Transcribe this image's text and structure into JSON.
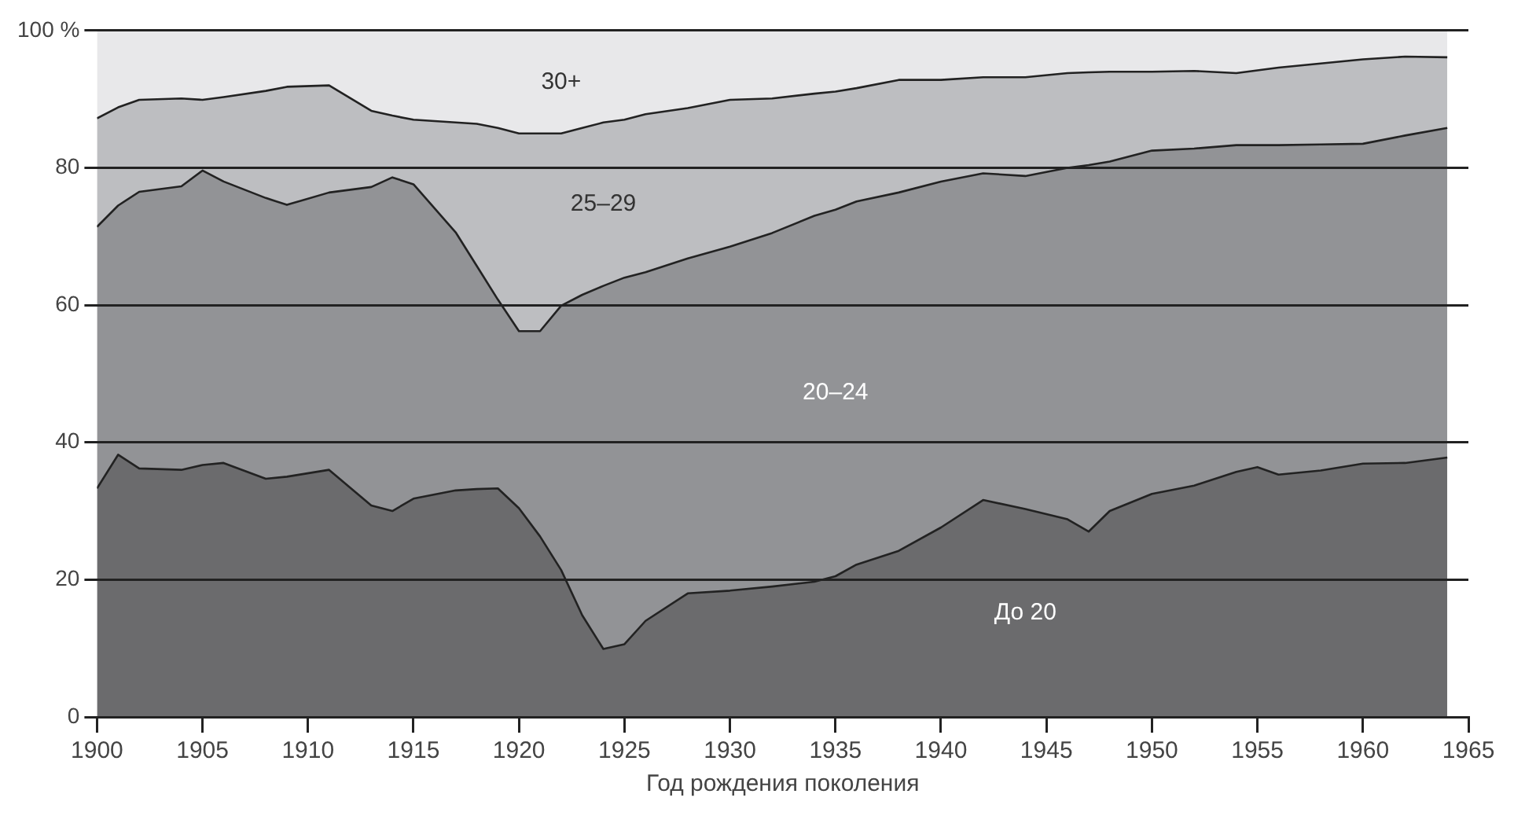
{
  "chart_data": {
    "type": "area",
    "stacked": true,
    "xlabel": "Год рождения поколения",
    "x": [
      1900,
      1901,
      1902,
      1904,
      1905,
      1906,
      1908,
      1909,
      1911,
      1913,
      1914,
      1915,
      1917,
      1918,
      1919,
      1920,
      1921,
      1922,
      1923,
      1924,
      1925,
      1926,
      1928,
      1930,
      1932,
      1934,
      1935,
      1936,
      1938,
      1940,
      1942,
      1944,
      1946,
      1947,
      1948,
      1950,
      1952,
      1954,
      1955,
      1956,
      1958,
      1960,
      1962,
      1964
    ],
    "series": [
      {
        "name": "До 20",
        "color": "#6b6b6d",
        "values": [
          33.3,
          38.2,
          36.2,
          36.0,
          36.7,
          37.0,
          34.7,
          35.0,
          36.0,
          30.8,
          30.0,
          31.8,
          33.0,
          33.2,
          33.3,
          30.4,
          26.3,
          21.4,
          14.8,
          9.9,
          10.6,
          14.0,
          18.0,
          18.4,
          19.0,
          19.7,
          20.5,
          22.2,
          24.2,
          27.6,
          31.6,
          30.3,
          28.8,
          27.0,
          30.0,
          32.5,
          33.7,
          35.7,
          36.4,
          35.3,
          35.9,
          36.9,
          37.0,
          37.8
        ]
      },
      {
        "name": "20–24",
        "color": "#929396",
        "values": [
          38.1,
          36.3,
          40.3,
          41.3,
          42.9,
          41.0,
          40.9,
          39.6,
          40.4,
          46.4,
          48.6,
          45.8,
          37.6,
          32.5,
          27.5,
          25.8,
          29.9,
          38.5,
          46.7,
          52.9,
          53.4,
          50.8,
          48.8,
          50.1,
          51.5,
          53.3,
          53.4,
          52.9,
          52.2,
          50.4,
          47.6,
          48.5,
          51.2,
          53.4,
          50.9,
          50.0,
          49.1,
          47.6,
          46.9,
          48.0,
          47.5,
          46.6,
          47.7,
          48.0
        ]
      },
      {
        "name": "25–29",
        "color": "#bdbec1",
        "values": [
          15.8,
          14.3,
          13.4,
          12.8,
          10.3,
          12.3,
          15.6,
          17.2,
          15.6,
          11.1,
          9.0,
          9.4,
          16.0,
          20.7,
          25.0,
          28.8,
          28.8,
          25.1,
          24.3,
          23.8,
          23.0,
          23.0,
          21.9,
          21.4,
          19.6,
          17.8,
          17.2,
          16.5,
          16.4,
          14.8,
          14.0,
          14.4,
          13.8,
          13.5,
          13.1,
          11.5,
          11.3,
          10.5,
          10.9,
          11.3,
          11.8,
          12.3,
          11.5,
          10.3
        ]
      },
      {
        "name": "30+",
        "color": "#e8e8ea",
        "values": [
          12.8,
          11.2,
          10.1,
          9.9,
          10.1,
          9.7,
          8.8,
          8.2,
          8.0,
          11.7,
          12.4,
          13.0,
          13.4,
          13.6,
          14.2,
          15.0,
          15.0,
          15.0,
          14.2,
          13.4,
          13.0,
          12.2,
          11.3,
          10.1,
          9.9,
          9.2,
          8.9,
          8.4,
          7.2,
          7.2,
          6.8,
          6.8,
          6.2,
          6.1,
          6.0,
          6.0,
          5.9,
          6.2,
          5.8,
          5.4,
          4.8,
          4.2,
          3.8,
          3.9
        ]
      }
    ],
    "xlim": [
      1900,
      1965
    ],
    "xticks": [
      1900,
      1905,
      1910,
      1915,
      1920,
      1925,
      1930,
      1935,
      1940,
      1945,
      1950,
      1955,
      1960,
      1965
    ],
    "ylim": [
      0,
      100
    ],
    "yticks": [
      0,
      20,
      40,
      60,
      80,
      {
        "value": 100,
        "label": "100 %"
      }
    ],
    "grid": "y",
    "legend": false
  }
}
